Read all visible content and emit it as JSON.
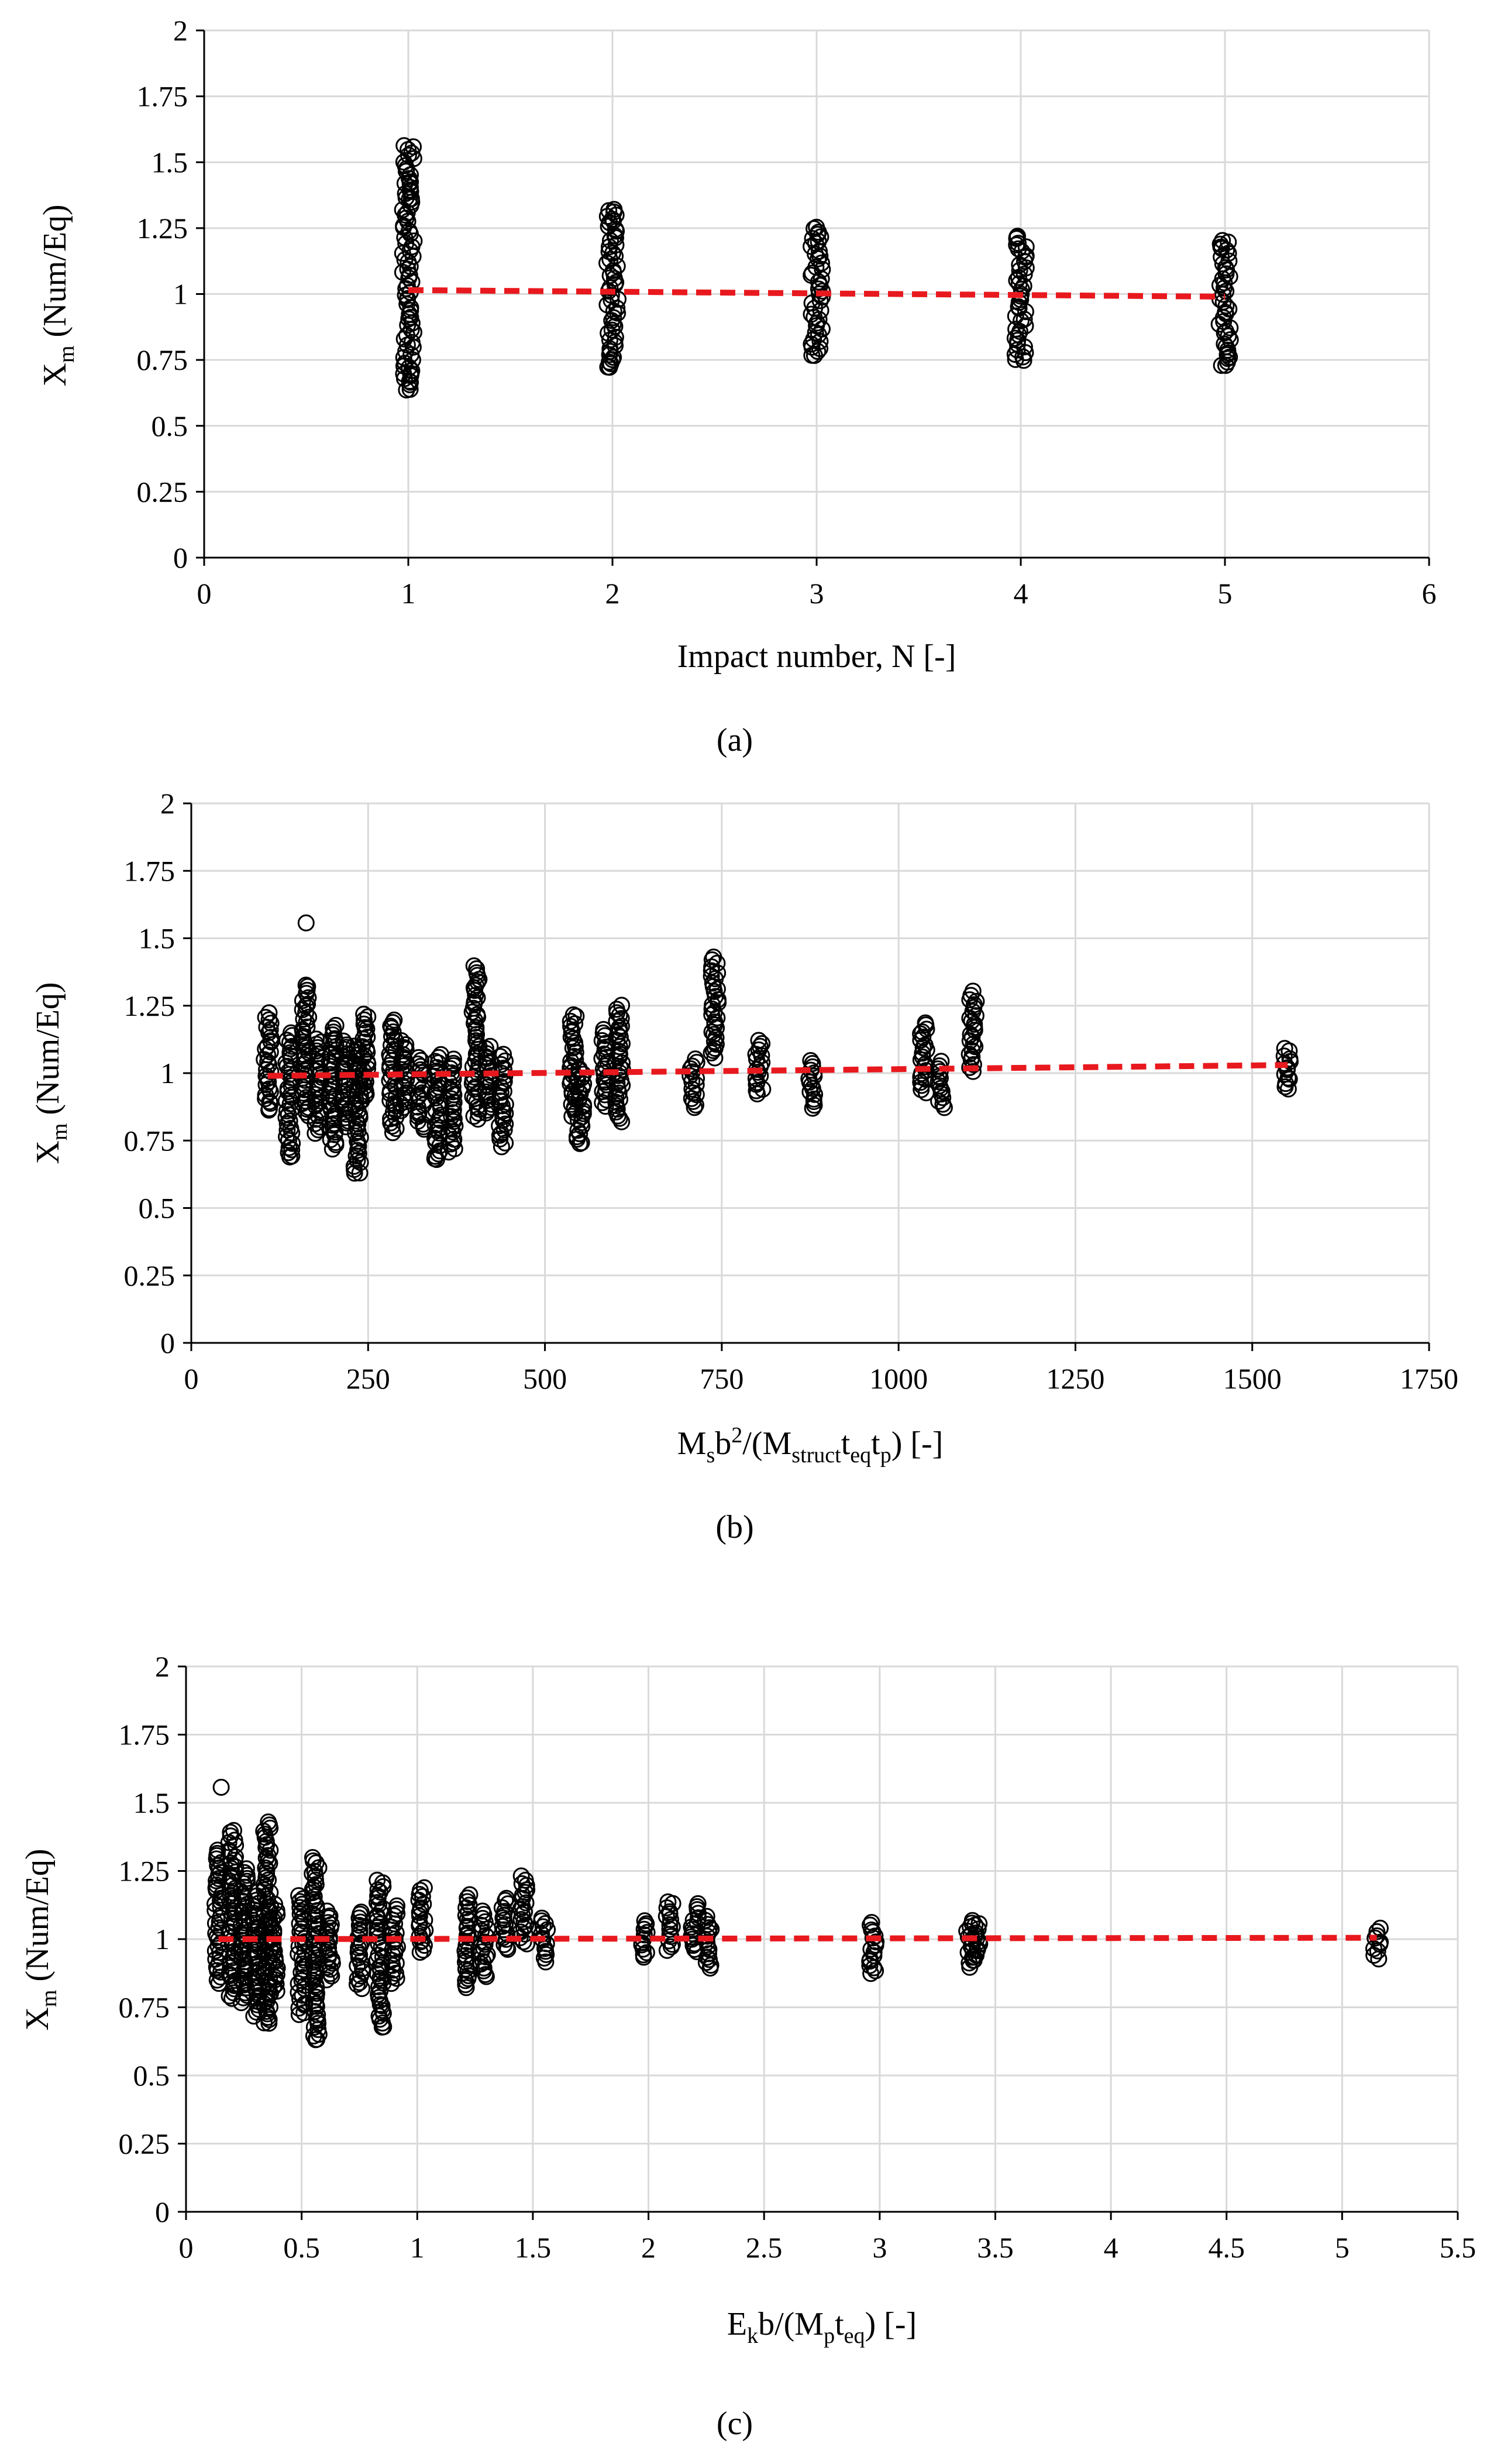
{
  "chart_data": [
    {
      "panel_label": "(a)",
      "type": "scatter",
      "xlabel": "Impact number, N [-]",
      "ylabel": {
        "base": "X",
        "sub": "m",
        "rest": " (Num/Eq)"
      },
      "xlim": [
        0,
        6
      ],
      "ylim": [
        0,
        2
      ],
      "xticks": [
        0,
        1,
        2,
        3,
        4,
        5,
        6
      ],
      "xtick_labels": [
        "0",
        "1",
        "2",
        "3",
        "4",
        "5",
        "6"
      ],
      "yticks": [
        0,
        0.25,
        0.5,
        0.75,
        1,
        1.25,
        1.5,
        1.75,
        2
      ],
      "ytick_labels": [
        "0",
        "0.25",
        "0.5",
        "0.75",
        "1",
        "1.25",
        "1.5",
        "1.75",
        "2"
      ],
      "grid": true,
      "groups": [
        {
          "x": 1,
          "min": 0.64,
          "max": 1.56,
          "outliers": [
            0.64,
            0.67,
            0.7,
            0.73,
            1.36,
            1.39,
            1.42,
            1.56
          ]
        },
        {
          "x": 2,
          "min": 0.72,
          "max": 1.32,
          "outliers": [
            0.72,
            0.75,
            1.28,
            1.3,
            1.32
          ]
        },
        {
          "x": 3,
          "min": 0.77,
          "max": 1.25,
          "outliers": [
            0.77,
            0.8,
            1.22,
            1.25
          ]
        },
        {
          "x": 4,
          "min": 0.75,
          "max": 1.22,
          "outliers": [
            0.75,
            0.78,
            1.18,
            1.22
          ]
        },
        {
          "x": 5,
          "min": 0.73,
          "max": 1.2,
          "outliers": [
            0.73,
            0.76,
            1.17,
            1.2
          ]
        }
      ],
      "trendline": {
        "x": [
          1,
          5
        ],
        "y": [
          1.015,
          0.99
        ],
        "color": "#e8191e",
        "style": "dashed"
      }
    },
    {
      "panel_label": "(b)",
      "type": "scatter",
      "xlabel": {
        "runs": [
          [
            "M",
            ""
          ],
          [
            "s",
            "sub"
          ],
          [
            "b",
            ""
          ],
          [
            "2",
            "sup"
          ],
          [
            "/(M",
            ""
          ],
          [
            "struct",
            "sub"
          ],
          [
            "t",
            ""
          ],
          [
            "eq",
            "sub"
          ],
          [
            "t",
            ""
          ],
          [
            "p",
            "sub"
          ],
          [
            ") [-]",
            ""
          ]
        ]
      },
      "ylabel": {
        "base": "X",
        "sub": "m",
        "rest": " (Num/Eq)"
      },
      "xlim": [
        0,
        1750
      ],
      "ylim": [
        0,
        2
      ],
      "xticks": [
        0,
        250,
        500,
        750,
        1000,
        1250,
        1500,
        1750
      ],
      "xtick_labels": [
        "0",
        "250",
        "500",
        "750",
        "1000",
        "1250",
        "1500",
        "1750"
      ],
      "yticks": [
        0,
        0.25,
        0.5,
        0.75,
        1,
        1.25,
        1.5,
        1.75,
        2
      ],
      "ytick_labels": [
        "0",
        "0.25",
        "0.5",
        "0.75",
        "1",
        "1.25",
        "1.5",
        "1.75",
        "2"
      ],
      "grid": true,
      "groups": [
        {
          "x": 108,
          "min": 0.86,
          "max": 1.22,
          "outliers": []
        },
        {
          "x": 138,
          "min": 0.69,
          "max": 1.15,
          "outliers": [
            0.69
          ]
        },
        {
          "x": 162,
          "min": 0.84,
          "max": 1.33,
          "outliers": [
            1.56
          ]
        },
        {
          "x": 180,
          "min": 0.78,
          "max": 1.13,
          "outliers": []
        },
        {
          "x": 200,
          "min": 0.72,
          "max": 1.18,
          "outliers": []
        },
        {
          "x": 218,
          "min": 0.8,
          "max": 1.12,
          "outliers": []
        },
        {
          "x": 235,
          "min": 0.63,
          "max": 1.1,
          "outliers": [
            0.63
          ]
        },
        {
          "x": 245,
          "min": 0.9,
          "max": 1.22,
          "outliers": []
        },
        {
          "x": 285,
          "min": 0.78,
          "max": 1.2,
          "outliers": []
        },
        {
          "x": 300,
          "min": 0.86,
          "max": 1.12,
          "outliers": []
        },
        {
          "x": 325,
          "min": 0.79,
          "max": 1.06,
          "outliers": []
        },
        {
          "x": 348,
          "min": 0.68,
          "max": 1.07,
          "outliers": [
            0.68
          ]
        },
        {
          "x": 368,
          "min": 0.71,
          "max": 1.05,
          "outliers": []
        },
        {
          "x": 402,
          "min": 0.83,
          "max": 1.4,
          "outliers": []
        },
        {
          "x": 420,
          "min": 0.85,
          "max": 1.1,
          "outliers": []
        },
        {
          "x": 440,
          "min": 0.73,
          "max": 1.07,
          "outliers": []
        },
        {
          "x": 540,
          "min": 0.84,
          "max": 1.22,
          "outliers": []
        },
        {
          "x": 550,
          "min": 0.74,
          "max": 1.02,
          "outliers": [
            0.74
          ]
        },
        {
          "x": 585,
          "min": 0.88,
          "max": 1.16,
          "outliers": []
        },
        {
          "x": 605,
          "min": 0.82,
          "max": 1.25,
          "outliers": []
        },
        {
          "x": 710,
          "min": 0.87,
          "max": 1.05,
          "outliers": []
        },
        {
          "x": 740,
          "min": 1.06,
          "max": 1.43,
          "outliers": []
        },
        {
          "x": 803,
          "min": 0.92,
          "max": 1.12,
          "outliers": []
        },
        {
          "x": 878,
          "min": 0.87,
          "max": 1.05,
          "outliers": []
        },
        {
          "x": 1035,
          "min": 0.93,
          "max": 1.19,
          "outliers": []
        },
        {
          "x": 1060,
          "min": 0.87,
          "max": 1.04,
          "outliers": []
        },
        {
          "x": 1105,
          "min": 1.01,
          "max": 1.3,
          "outliers": []
        },
        {
          "x": 1550,
          "min": 0.94,
          "max": 1.09,
          "outliers": []
        }
      ],
      "trendline": {
        "x": [
          108,
          1550
        ],
        "y": [
          0.99,
          1.03
        ],
        "color": "#e8191e",
        "style": "dashed"
      }
    },
    {
      "panel_label": "(c)",
      "type": "scatter",
      "xlabel": {
        "runs": [
          [
            "E",
            ""
          ],
          [
            "k",
            "sub"
          ],
          [
            "b/(M",
            ""
          ],
          [
            "p",
            "sub"
          ],
          [
            "t",
            ""
          ],
          [
            "eq",
            "sub"
          ],
          [
            ") [-]",
            ""
          ]
        ]
      },
      "ylabel": {
        "base": "X",
        "sub": "m",
        "rest": " (Num/Eq)"
      },
      "xlim": [
        0,
        5.5
      ],
      "ylim": [
        0,
        2
      ],
      "xticks": [
        0,
        0.5,
        1,
        1.5,
        2,
        2.5,
        3,
        3.5,
        4,
        4.5,
        5,
        5.5
      ],
      "xtick_labels": [
        "0",
        "0.5",
        "1",
        "1.5",
        "2",
        "2.5",
        "3",
        "3.5",
        "4",
        "4.5",
        "5",
        "5.5"
      ],
      "yticks": [
        0,
        0.25,
        0.5,
        0.75,
        1,
        1.25,
        1.5,
        1.75,
        2
      ],
      "ytick_labels": [
        "0",
        "0.25",
        "0.5",
        "0.75",
        "1",
        "1.25",
        "1.5",
        "1.75",
        "2"
      ],
      "grid": true,
      "groups": [
        {
          "x": 0.14,
          "min": 0.84,
          "max": 1.33,
          "outliers": [
            1.56
          ]
        },
        {
          "x": 0.2,
          "min": 0.78,
          "max": 1.4,
          "outliers": []
        },
        {
          "x": 0.25,
          "min": 0.77,
          "max": 1.26,
          "outliers": []
        },
        {
          "x": 0.3,
          "min": 0.72,
          "max": 1.17,
          "outliers": []
        },
        {
          "x": 0.35,
          "min": 0.69,
          "max": 1.43,
          "outliers": [
            0.69
          ]
        },
        {
          "x": 0.38,
          "min": 0.8,
          "max": 1.13,
          "outliers": []
        },
        {
          "x": 0.5,
          "min": 0.72,
          "max": 1.16,
          "outliers": []
        },
        {
          "x": 0.56,
          "min": 0.63,
          "max": 1.3,
          "outliers": [
            0.63
          ]
        },
        {
          "x": 0.62,
          "min": 0.85,
          "max": 1.1,
          "outliers": []
        },
        {
          "x": 0.75,
          "min": 0.82,
          "max": 1.1,
          "outliers": []
        },
        {
          "x": 0.84,
          "min": 0.68,
          "max": 1.22,
          "outliers": [
            0.68
          ]
        },
        {
          "x": 0.9,
          "min": 0.84,
          "max": 1.12,
          "outliers": []
        },
        {
          "x": 1.02,
          "min": 0.95,
          "max": 1.19,
          "outliers": []
        },
        {
          "x": 1.22,
          "min": 0.82,
          "max": 1.16,
          "outliers": []
        },
        {
          "x": 1.29,
          "min": 0.86,
          "max": 1.1,
          "outliers": []
        },
        {
          "x": 1.38,
          "min": 0.96,
          "max": 1.15,
          "outliers": []
        },
        {
          "x": 1.46,
          "min": 0.98,
          "max": 1.23,
          "outliers": []
        },
        {
          "x": 1.55,
          "min": 0.92,
          "max": 1.08,
          "outliers": []
        },
        {
          "x": 1.98,
          "min": 0.93,
          "max": 1.07,
          "outliers": []
        },
        {
          "x": 2.09,
          "min": 0.96,
          "max": 1.14,
          "outliers": []
        },
        {
          "x": 2.2,
          "min": 0.95,
          "max": 1.13,
          "outliers": []
        },
        {
          "x": 2.26,
          "min": 0.89,
          "max": 1.08,
          "outliers": []
        },
        {
          "x": 2.97,
          "min": 0.87,
          "max": 1.06,
          "outliers": []
        },
        {
          "x": 3.39,
          "min": 0.9,
          "max": 1.07,
          "outliers": []
        },
        {
          "x": 3.42,
          "min": 0.92,
          "max": 1.06,
          "outliers": []
        },
        {
          "x": 5.15,
          "min": 0.93,
          "max": 1.04,
          "outliers": []
        }
      ],
      "trendline": {
        "x": [
          0.14,
          5.15
        ],
        "y": [
          1.0,
          1.005
        ],
        "color": "#e8191e",
        "style": "dashed"
      }
    }
  ]
}
